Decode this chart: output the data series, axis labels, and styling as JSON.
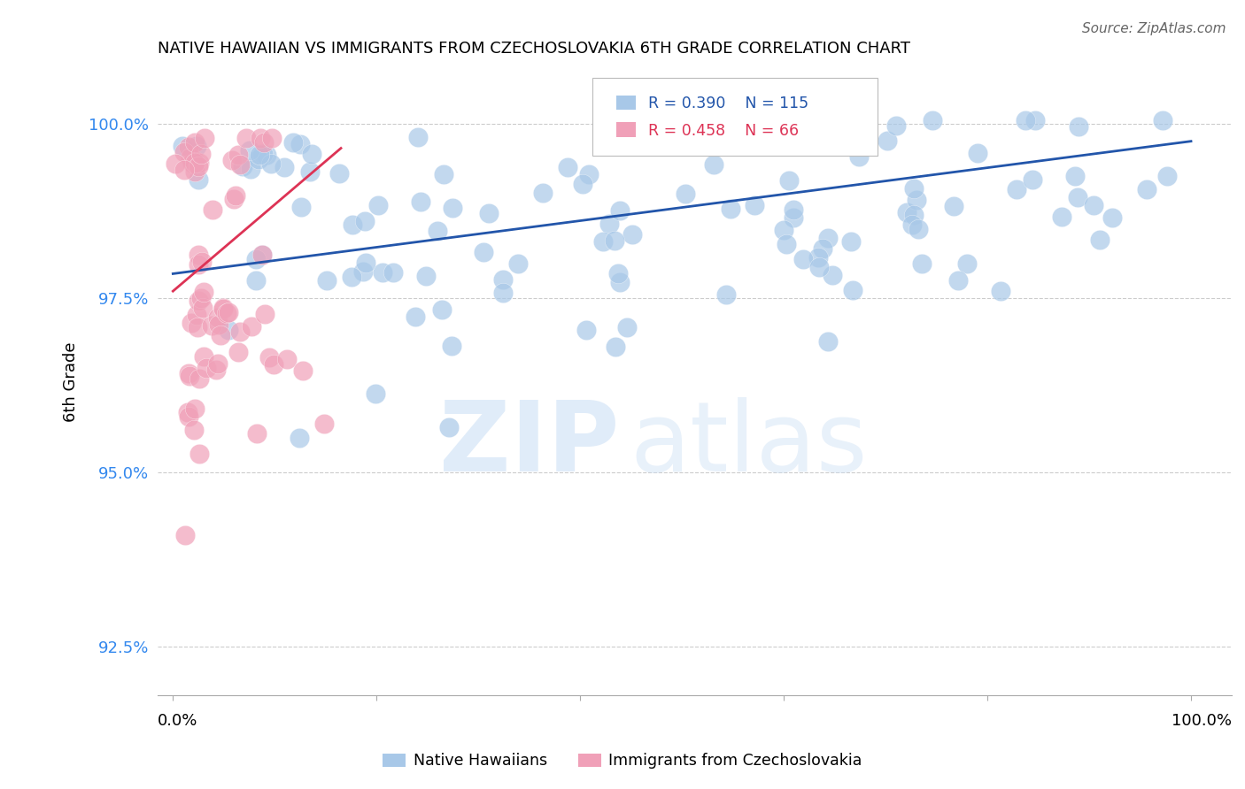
{
  "title": "NATIVE HAWAIIAN VS IMMIGRANTS FROM CZECHOSLOVAKIA 6TH GRADE CORRELATION CHART",
  "source": "Source: ZipAtlas.com",
  "ylabel": "6th Grade",
  "yticks": [
    92.5,
    95.0,
    97.5,
    100.0
  ],
  "xlim": [
    0.0,
    1.0
  ],
  "ylim": [
    91.8,
    100.8
  ],
  "blue_R": 0.39,
  "blue_N": 115,
  "pink_R": 0.458,
  "pink_N": 66,
  "blue_color": "#a8c8e8",
  "pink_color": "#f0a0b8",
  "blue_line_color": "#2255aa",
  "pink_line_color": "#dd3355",
  "legend_label_blue": "Native Hawaiians",
  "legend_label_pink": "Immigrants from Czechoslovakia",
  "blue_line_x0": 0.0,
  "blue_line_x1": 1.0,
  "blue_line_y0": 97.85,
  "blue_line_y1": 99.75,
  "pink_line_x0": 0.0,
  "pink_line_x1": 0.165,
  "pink_line_y0": 97.6,
  "pink_line_y1": 99.65
}
